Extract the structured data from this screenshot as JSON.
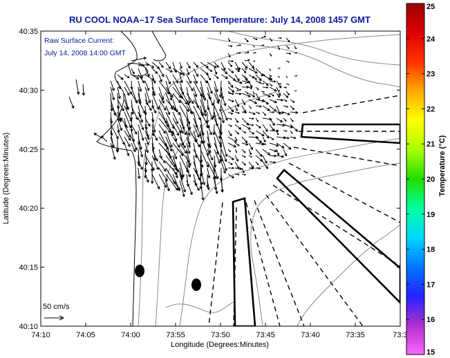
{
  "chart_data": {
    "type": "heatmap",
    "title": "RU COOL  NOAA–17  Sea Surface Temperature:  July 14, 2008 1457 GMT",
    "annotation_lines": [
      "Raw Surface Current:",
      "July 14, 2008 14:00 GMT"
    ],
    "scale_label": "50 cm/s",
    "xlabel": "Longitude (Degrees:Minutes)",
    "ylabel": "Latitude (Degrees:Minutes)",
    "x_ticks": [
      "74:10",
      "74:05",
      "74:00",
      "73:55",
      "73:50",
      "73:45",
      "73:40",
      "73:35",
      "73:3"
    ],
    "y_ticks": [
      "40:35",
      "40:30",
      "40:25",
      "40:20",
      "40:15",
      "40:10"
    ],
    "xlim": [
      -74.1667,
      -73.5
    ],
    "ylim": [
      40.1667,
      40.5833
    ],
    "colorbar": {
      "label": "Temperature (°C)",
      "ticks": [
        "25",
        "24",
        "23",
        "22",
        "21",
        "20",
        "19",
        "18",
        "17",
        "16",
        "15"
      ],
      "range": [
        15,
        25
      ],
      "colors": [
        "#ff66ff",
        "#b030d0",
        "#2222ff",
        "#0077ff",
        "#00d8ff",
        "#00ffa0",
        "#22dd00",
        "#aaff00",
        "#ffff00",
        "#ffaa00",
        "#ff3300",
        "#e00000",
        "#9a0000"
      ]
    },
    "series": [
      {
        "name": "Raw Surface Current",
        "type": "vector-field"
      },
      {
        "name": "Bathymetry contours",
        "type": "contour"
      }
    ]
  }
}
